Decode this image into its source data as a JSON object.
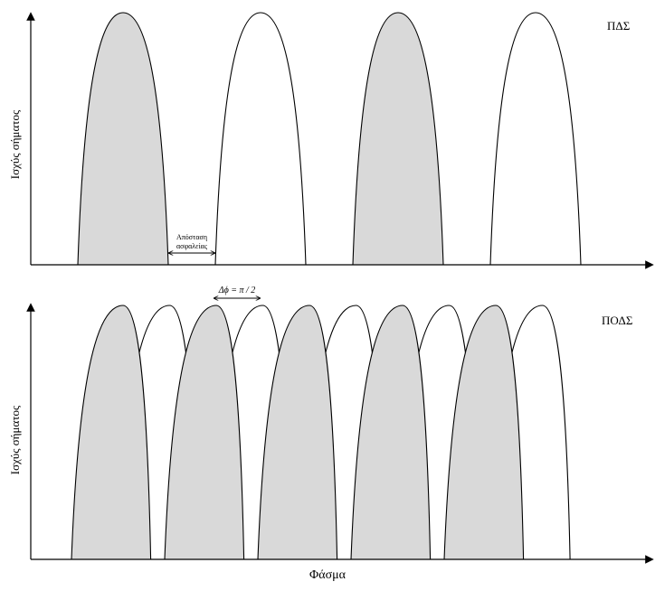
{
  "top_panel": {
    "label": "ΠΔΣ",
    "ylabel": "Ισχύς σήματος",
    "guard_band_label_line1": "Απόσταση",
    "guard_band_label_line2": "ασφαλείας",
    "carriers": [
      "shaded",
      "white",
      "shaded",
      "white"
    ]
  },
  "bottom_panel": {
    "label": "ΠΟΔΣ",
    "ylabel": "Ισχύς σήματος",
    "spacing_label": "Δϕ = π / 2",
    "carriers": [
      "shaded",
      "white",
      "shaded",
      "white",
      "shaded",
      "white",
      "shaded",
      "white",
      "shaded",
      "white"
    ]
  },
  "xlabel": "Φάσμα",
  "colors": {
    "shaded": "#d9d9d9",
    "white": "#ffffff",
    "stroke": "#000000"
  }
}
